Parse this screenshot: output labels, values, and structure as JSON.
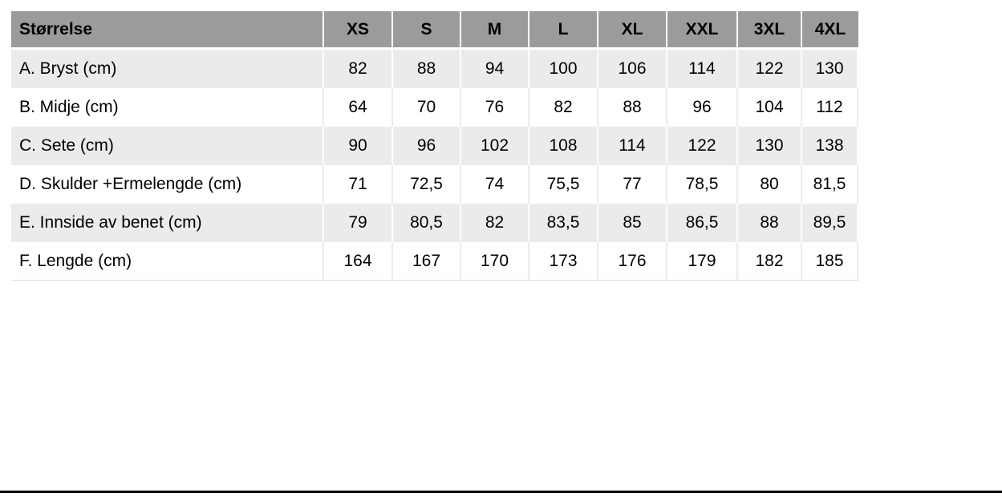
{
  "chart_data": {
    "type": "table",
    "title": "",
    "columns": [
      "Størrelse",
      "XS",
      "S",
      "M",
      "L",
      "XL",
      "XXL",
      "3XL",
      "4XL"
    ],
    "rows": [
      {
        "label": "A. Bryst (cm)",
        "values": [
          "82",
          "88",
          "94",
          "100",
          "106",
          "114",
          "122",
          "130"
        ]
      },
      {
        "label": "B. Midje (cm)",
        "values": [
          "64",
          "70",
          "76",
          "82",
          "88",
          "96",
          "104",
          "112"
        ]
      },
      {
        "label": "C. Sete (cm)",
        "values": [
          "90",
          "96",
          "102",
          "108",
          "114",
          "122",
          "130",
          "138"
        ]
      },
      {
        "label": "D. Skulder +Ermelengde (cm)",
        "values": [
          "71",
          "72,5",
          "74",
          "75,5",
          "77",
          "78,5",
          "80",
          "81,5"
        ]
      },
      {
        "label": "E. Innside av benet (cm)",
        "values": [
          "79",
          "80,5",
          "82",
          "83,5",
          "85",
          "86,5",
          "88",
          "89,5"
        ]
      },
      {
        "label": "F. Lengde (cm)",
        "values": [
          "164",
          "167",
          "170",
          "173",
          "176",
          "179",
          "182",
          "185"
        ]
      }
    ]
  },
  "colors": {
    "header_bg": "#9b9b9b",
    "band_bg": "#ebebeb",
    "row_bg": "#ffffff",
    "text": "#000000",
    "bottom_rule": "#000000"
  }
}
